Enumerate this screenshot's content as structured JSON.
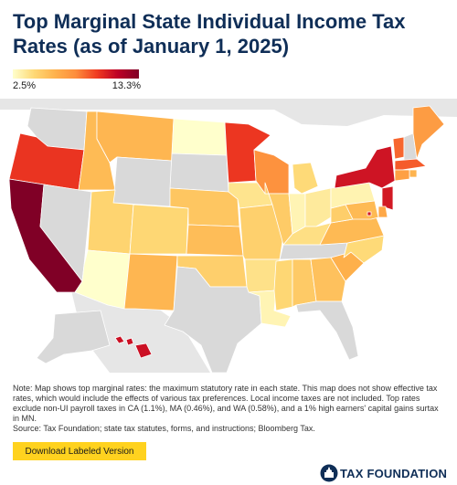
{
  "title": "Top Marginal State Individual Income Tax Rates (as of January 1, 2025)",
  "legend": {
    "min_label": "2.5%",
    "max_label": "13.3%",
    "min_value": 2.5,
    "max_value": 13.3
  },
  "colors": {
    "no_tax": "#d9d9d9",
    "scale": [
      "#ffffcc",
      "#fed976",
      "#feb24c",
      "#fd8d3c",
      "#f03b20",
      "#bd0026",
      "#800026"
    ],
    "title": "#0f2e57",
    "button": "#ffd21f",
    "canada_mexico": "#e6e6e6"
  },
  "map": {
    "states": [
      {
        "id": "WA",
        "rate": null
      },
      {
        "id": "OR",
        "rate": 9.9
      },
      {
        "id": "CA",
        "rate": 13.3
      },
      {
        "id": "NV",
        "rate": null
      },
      {
        "id": "ID",
        "rate": 5.695
      },
      {
        "id": "MT",
        "rate": 5.9
      },
      {
        "id": "WY",
        "rate": null
      },
      {
        "id": "UT",
        "rate": 4.55
      },
      {
        "id": "AZ",
        "rate": 2.5
      },
      {
        "id": "CO",
        "rate": 4.4
      },
      {
        "id": "NM",
        "rate": 5.9
      },
      {
        "id": "ND",
        "rate": 2.5
      },
      {
        "id": "SD",
        "rate": null
      },
      {
        "id": "NE",
        "rate": 5.2
      },
      {
        "id": "KS",
        "rate": 5.58
      },
      {
        "id": "OK",
        "rate": 4.75
      },
      {
        "id": "TX",
        "rate": null
      },
      {
        "id": "MN",
        "rate": 9.85
      },
      {
        "id": "IA",
        "rate": 3.8
      },
      {
        "id": "MO",
        "rate": 4.7
      },
      {
        "id": "AR",
        "rate": 3.9
      },
      {
        "id": "LA",
        "rate": 3.0
      },
      {
        "id": "WI",
        "rate": 7.65
      },
      {
        "id": "IL",
        "rate": 4.95
      },
      {
        "id": "MI",
        "rate": 4.25
      },
      {
        "id": "IN",
        "rate": 3.0
      },
      {
        "id": "OH",
        "rate": 3.5
      },
      {
        "id": "KY",
        "rate": 4.0
      },
      {
        "id": "TN",
        "rate": null
      },
      {
        "id": "MS",
        "rate": 4.4
      },
      {
        "id": "AL",
        "rate": 5.0
      },
      {
        "id": "GA",
        "rate": 5.39
      },
      {
        "id": "FL",
        "rate": null
      },
      {
        "id": "SC",
        "rate": 6.2
      },
      {
        "id": "NC",
        "rate": 4.25
      },
      {
        "id": "VA",
        "rate": 5.75
      },
      {
        "id": "WV",
        "rate": 4.82
      },
      {
        "id": "PA",
        "rate": 3.07
      },
      {
        "id": "NY",
        "rate": 10.9
      },
      {
        "id": "VT",
        "rate": 8.75
      },
      {
        "id": "NH",
        "rate": null
      },
      {
        "id": "ME",
        "rate": 7.15
      },
      {
        "id": "MA",
        "rate": 9.0
      },
      {
        "id": "RI",
        "rate": 5.99
      },
      {
        "id": "CT",
        "rate": 6.99
      },
      {
        "id": "NJ",
        "rate": 10.75
      },
      {
        "id": "DE",
        "rate": 6.6
      },
      {
        "id": "MD",
        "rate": 5.75
      },
      {
        "id": "DC",
        "rate": 10.75
      },
      {
        "id": "AK",
        "rate": null
      },
      {
        "id": "HI",
        "rate": 11.0
      }
    ]
  },
  "note": {
    "text": "Note: Map shows top marginal rates: the maximum statutory rate in each state. This map does not show effective tax rates, which would include the effects of various tax preferences. Local income taxes are not included. Top rates exclude non-UI payroll taxes in CA (1.1%), MA (0.46%), and WA (0.58%), and a 1% high earners' capital gains surtax in MN.",
    "source": "Source: Tax Foundation; state tax statutes, forms, and instructions; Bloomberg Tax."
  },
  "download_button": "Download Labeled Version",
  "logo": {
    "text": "TAX FOUNDATION",
    "icon": "capitol-icon"
  }
}
